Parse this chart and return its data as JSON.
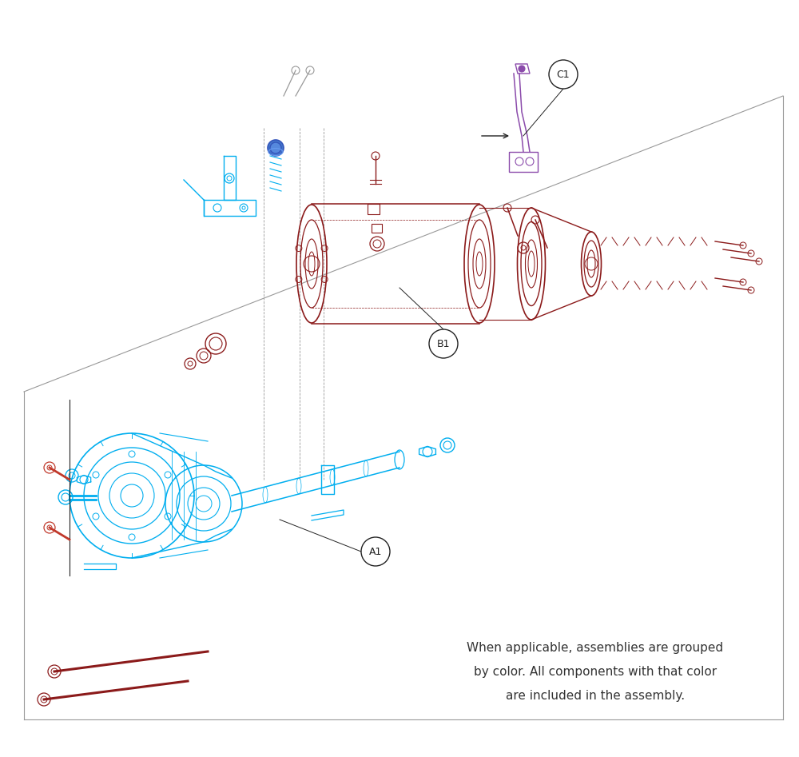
{
  "background_color": "#ffffff",
  "cyan_color": "#00AEEF",
  "red_color": "#C0392B",
  "dark_red": "#8B1A1A",
  "purple_color": "#8B4BAB",
  "gray_color": "#999999",
  "black_color": "#222222",
  "blue_cap_color": "#3355BB",
  "footnote_line1": "When applicable, assemblies are grouped",
  "footnote_line2": "by color. All components with that color",
  "footnote_line3": "are included in the assembly.",
  "label_A1": "A1",
  "label_B1": "B1",
  "label_C1": "C1"
}
